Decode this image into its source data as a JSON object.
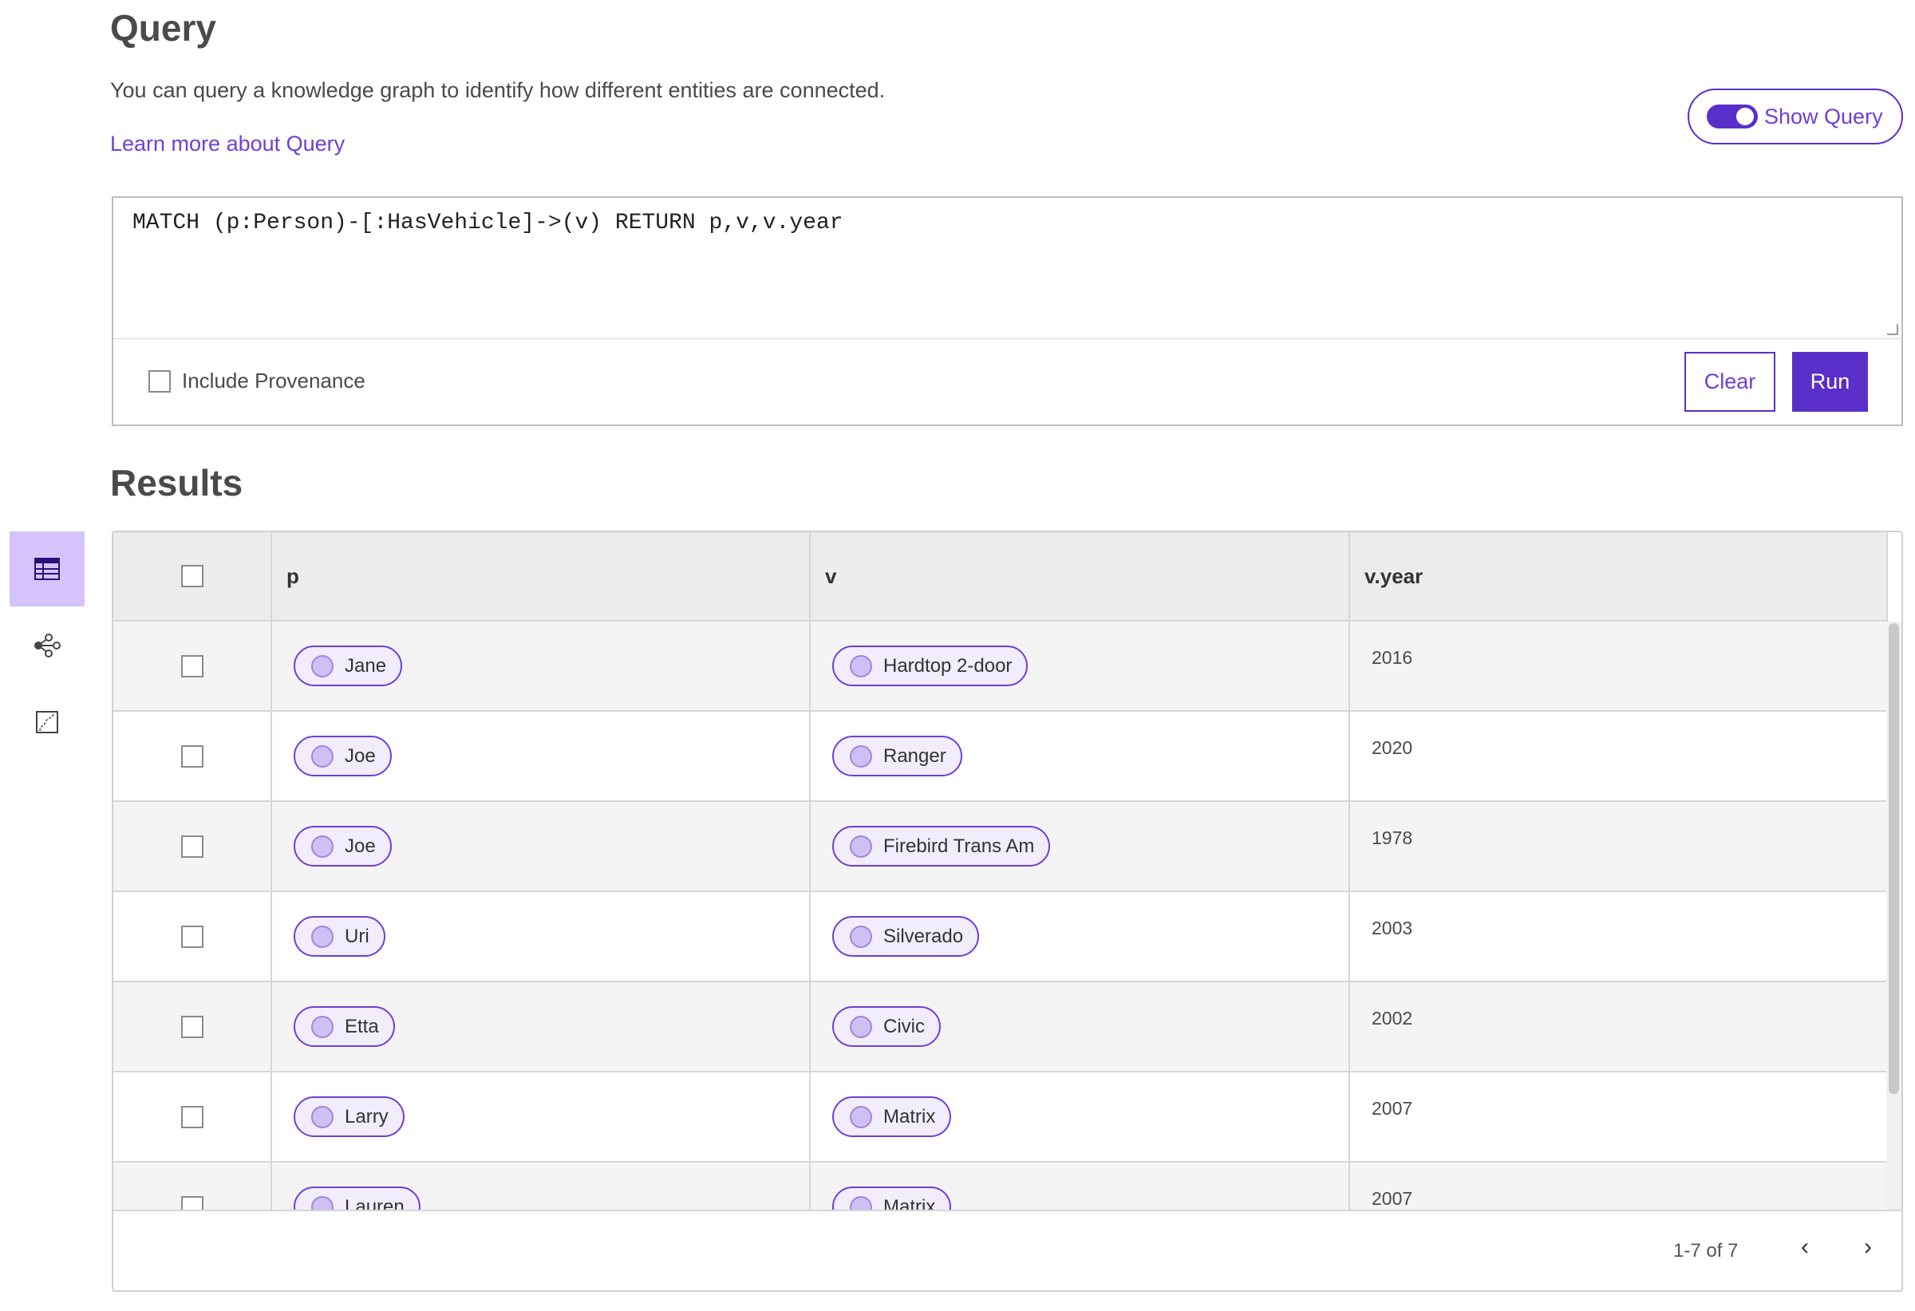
{
  "header": {
    "title": "Query",
    "description": "You can query a knowledge graph to identify how different entities are connected.",
    "learn_more": "Learn more about Query",
    "show_query_label": "Show Query",
    "show_query_on": true
  },
  "query": {
    "text": "MATCH (p:Person)-[:HasVehicle]->(v) RETURN p,v,v.year",
    "include_provenance_label": "Include Provenance",
    "include_provenance": false,
    "clear_label": "Clear",
    "run_label": "Run"
  },
  "sidebar": {
    "items": [
      {
        "icon": "table-icon",
        "active": true
      },
      {
        "icon": "graph-icon",
        "active": false
      },
      {
        "icon": "chart-icon",
        "active": false
      }
    ]
  },
  "results": {
    "title": "Results",
    "columns": [
      "p",
      "v",
      "v.year"
    ],
    "rows": [
      {
        "p": "Jane",
        "v": "Hardtop 2-door",
        "year": "2016"
      },
      {
        "p": "Joe",
        "v": "Ranger",
        "year": "2020"
      },
      {
        "p": "Joe",
        "v": "Firebird Trans Am",
        "year": "1978"
      },
      {
        "p": "Uri",
        "v": "Silverado",
        "year": "2003"
      },
      {
        "p": "Etta",
        "v": "Civic",
        "year": "2002"
      },
      {
        "p": "Larry",
        "v": "Matrix",
        "year": "2007"
      },
      {
        "p": "Lauren",
        "v": "Matrix",
        "year": "2007"
      }
    ],
    "pagination": "1-7 of 7"
  },
  "colors": {
    "accent": "#5a2fc9",
    "active_tab": "#d4c4fb",
    "pill_bg": "#f1edfc"
  }
}
